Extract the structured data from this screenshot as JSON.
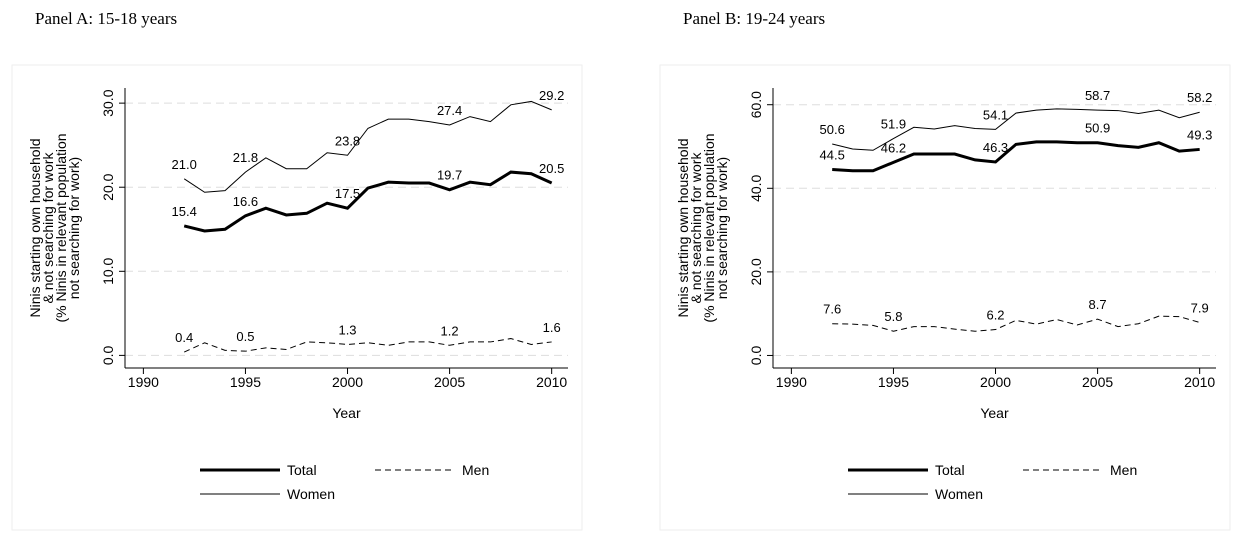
{
  "chart_data": [
    {
      "type": "line",
      "title": "Panel A: 15-18 years",
      "xlabel": "Year",
      "ylabel": [
        "Ninis starting own household",
        "& not searching for work",
        "(% Ninis in relevant population",
        "not searching for work)"
      ],
      "x": [
        1992,
        1993,
        1994,
        1995,
        1996,
        1997,
        1998,
        1999,
        2000,
        2001,
        2002,
        2003,
        2004,
        2005,
        2006,
        2007,
        2008,
        2009,
        2010
      ],
      "xlim": [
        1989.1,
        2010.8
      ],
      "xticks": [
        1990,
        1995,
        2000,
        2005,
        2010
      ],
      "ylim": [
        -1.5,
        31.8
      ],
      "yticks": [
        {
          "value": 0,
          "label": "0.0"
        },
        {
          "value": 10,
          "label": "10.0"
        },
        {
          "value": 20,
          "label": "20.0"
        },
        {
          "value": 30,
          "label": "30.0"
        }
      ],
      "grid": true,
      "series": [
        {
          "name": "Total",
          "color": "#000000",
          "width": 3,
          "dashed": false,
          "values": [
            15.4,
            14.8,
            15.0,
            16.6,
            17.5,
            16.7,
            16.9,
            18.1,
            17.5,
            19.9,
            20.6,
            20.5,
            20.5,
            19.7,
            20.6,
            20.3,
            21.8,
            21.6,
            20.5
          ],
          "value_labels": [
            "15.4",
            null,
            null,
            "16.6",
            null,
            null,
            null,
            null,
            "17.5",
            null,
            null,
            null,
            null,
            "19.7",
            null,
            null,
            null,
            null,
            "20.5"
          ]
        },
        {
          "name": "Men",
          "color": "#000000",
          "width": 1,
          "dashed": true,
          "values": [
            0.4,
            1.5,
            0.6,
            0.5,
            0.9,
            0.7,
            1.6,
            1.5,
            1.3,
            1.5,
            1.2,
            1.6,
            1.6,
            1.2,
            1.6,
            1.6,
            2.0,
            1.3,
            1.6
          ],
          "value_labels": [
            "0.4",
            null,
            null,
            "0.5",
            null,
            null,
            null,
            null,
            "1.3",
            null,
            null,
            null,
            null,
            "1.2",
            null,
            null,
            null,
            null,
            "1.6"
          ]
        },
        {
          "name": "Women",
          "color": "#000000",
          "width": 1,
          "dashed": false,
          "values": [
            21.0,
            19.4,
            19.6,
            21.8,
            23.5,
            22.2,
            22.2,
            24.1,
            23.8,
            27.0,
            28.1,
            28.1,
            27.8,
            27.4,
            28.4,
            27.8,
            29.8,
            30.2,
            29.2
          ],
          "value_labels": [
            "21.0",
            null,
            null,
            "21.8",
            null,
            null,
            null,
            null,
            "23.8",
            null,
            null,
            null,
            null,
            "27.4",
            null,
            null,
            null,
            null,
            "29.2"
          ]
        }
      ]
    },
    {
      "type": "line",
      "title": "Panel B: 19-24 years",
      "xlabel": "Year",
      "ylabel": [
        "Ninis starting own household",
        "& not searching for work",
        "(% Ninis in relevant population",
        "not searching for work)"
      ],
      "x": [
        1992,
        1993,
        1994,
        1995,
        1996,
        1997,
        1998,
        1999,
        2000,
        2001,
        2002,
        2003,
        2004,
        2005,
        2006,
        2007,
        2008,
        2009,
        2010
      ],
      "xlim": [
        1989.1,
        2010.8
      ],
      "xticks": [
        1990,
        1995,
        2000,
        2005,
        2010
      ],
      "ylim": [
        -3,
        64
      ],
      "yticks": [
        {
          "value": 0,
          "label": "0.0"
        },
        {
          "value": 20,
          "label": "20.0"
        },
        {
          "value": 40,
          "label": "40.0"
        },
        {
          "value": 60,
          "label": "60.0"
        }
      ],
      "grid": true,
      "series": [
        {
          "name": "Total",
          "color": "#000000",
          "width": 3,
          "dashed": false,
          "values": [
            44.5,
            44.2,
            44.2,
            46.2,
            48.2,
            48.2,
            48.2,
            46.8,
            46.3,
            50.5,
            51.1,
            51.1,
            50.9,
            50.9,
            50.2,
            49.8,
            50.9,
            48.9,
            49.3
          ],
          "value_labels": [
            "44.5",
            null,
            null,
            "46.2",
            null,
            null,
            null,
            null,
            "46.3",
            null,
            null,
            null,
            null,
            "50.9",
            null,
            null,
            null,
            null,
            "49.3"
          ]
        },
        {
          "name": "Men",
          "color": "#000000",
          "width": 1,
          "dashed": true,
          "values": [
            7.6,
            7.5,
            7.2,
            5.8,
            6.9,
            6.9,
            6.3,
            5.8,
            6.2,
            8.4,
            7.5,
            8.6,
            7.3,
            8.7,
            6.9,
            7.6,
            9.4,
            9.3,
            7.9
          ],
          "value_labels": [
            "7.6",
            null,
            null,
            "5.8",
            null,
            null,
            null,
            null,
            "6.2",
            null,
            null,
            null,
            null,
            "8.7",
            null,
            null,
            null,
            null,
            "7.9"
          ]
        },
        {
          "name": "Women",
          "color": "#000000",
          "width": 1,
          "dashed": false,
          "values": [
            50.6,
            49.4,
            49.1,
            51.9,
            54.6,
            54.2,
            55.0,
            54.3,
            54.1,
            58.0,
            58.7,
            59.0,
            58.9,
            58.7,
            58.6,
            57.9,
            58.7,
            56.9,
            58.2
          ],
          "value_labels": [
            "50.6",
            null,
            null,
            "51.9",
            null,
            null,
            null,
            null,
            "54.1",
            null,
            null,
            null,
            null,
            "58.7",
            null,
            null,
            null,
            null,
            "58.2"
          ]
        }
      ]
    }
  ]
}
